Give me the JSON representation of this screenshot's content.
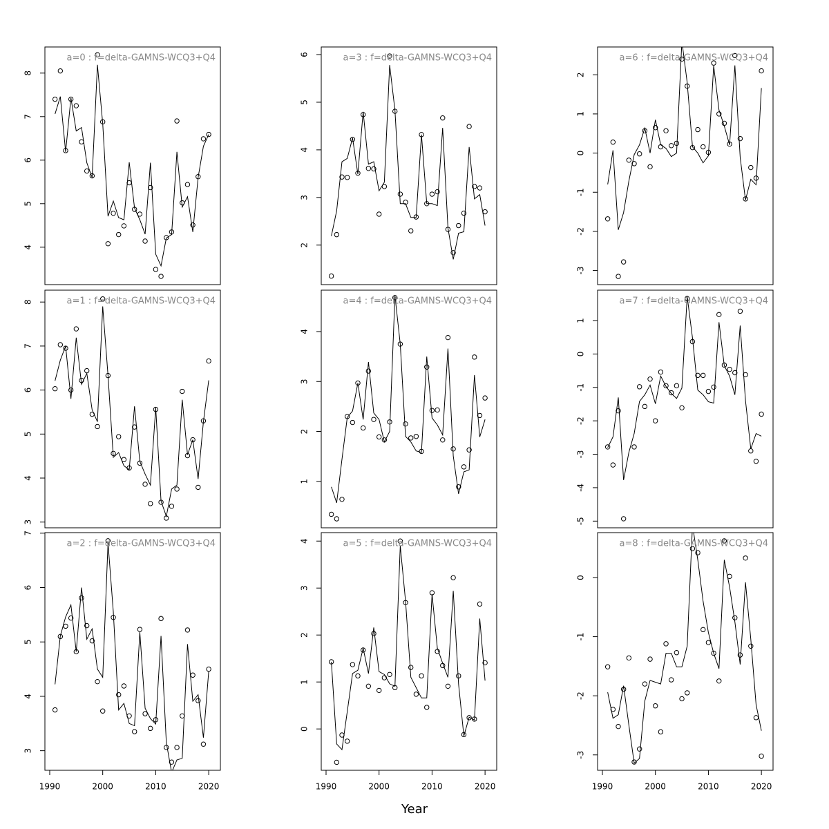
{
  "xlabel": "Year",
  "chart_data": [
    {
      "type": "line",
      "title": "a=0 : f=delta-GAMNS-WCQ3+Q4",
      "x": [
        1991,
        1992,
        1993,
        1994,
        1995,
        1996,
        1997,
        1998,
        1999,
        2000,
        2001,
        2002,
        2003,
        2004,
        2005,
        2006,
        2007,
        2008,
        2009,
        2010,
        2011,
        2012,
        2013,
        2014,
        2015,
        2016,
        2017,
        2018,
        2019,
        2020
      ],
      "xlim": [
        1989.09,
        2022.2
      ],
      "ylim": [
        3.14,
        8.6
      ],
      "yticks": [
        4,
        5,
        6,
        7,
        8
      ],
      "series": [
        {
          "style": "points",
          "color": "#000000",
          "values": [
            7.4,
            8.05,
            6.22,
            7.4,
            7.25,
            6.42,
            5.75,
            5.64,
            8.42,
            6.88,
            4.08,
            4.78,
            4.29,
            4.49,
            5.48,
            4.87,
            4.76,
            4.14,
            5.37,
            3.49,
            3.33,
            4.22,
            4.35,
            6.9,
            5.02,
            5.44,
            4.51,
            5.62,
            6.49,
            6.59
          ]
        },
        {
          "style": "line",
          "color": "#000000",
          "values": [
            7.06,
            7.46,
            6.19,
            7.43,
            6.67,
            6.75,
            5.94,
            5.6,
            8.19,
            6.84,
            4.71,
            5.06,
            4.68,
            4.63,
            5.95,
            4.9,
            4.63,
            4.3,
            5.94,
            3.84,
            3.57,
            4.21,
            4.29,
            6.19,
            4.92,
            5.16,
            4.35,
            5.6,
            6.32,
            6.59
          ]
        }
      ]
    },
    {
      "type": "line",
      "title": "a=1 : f=delta-GAMNS-WCQ3+Q4",
      "x": [
        1991,
        1992,
        1993,
        1994,
        1995,
        1996,
        1997,
        1998,
        1999,
        2000,
        2001,
        2002,
        2003,
        2004,
        2005,
        2006,
        2007,
        2008,
        2009,
        2010,
        2011,
        2012,
        2013,
        2014,
        2015,
        2016,
        2017,
        2018,
        2019,
        2020
      ],
      "xlim": [
        1989.09,
        2022.2
      ],
      "ylim": [
        2.87,
        8.27
      ],
      "yticks": [
        3,
        4,
        5,
        6,
        7,
        8
      ],
      "series": [
        {
          "style": "points",
          "color": "#000000",
          "values": [
            6.03,
            7.03,
            6.95,
            6.0,
            7.39,
            6.22,
            6.44,
            5.45,
            5.17,
            8.07,
            6.33,
            4.56,
            4.94,
            4.42,
            4.23,
            5.16,
            4.34,
            3.86,
            3.42,
            5.56,
            3.45,
            3.09,
            3.36,
            3.75,
            5.97,
            4.51,
            4.87,
            3.79,
            5.3,
            6.66
          ]
        },
        {
          "style": "line",
          "color": "#000000",
          "values": [
            6.21,
            6.68,
            7.0,
            5.8,
            7.19,
            6.13,
            6.38,
            5.55,
            5.28,
            7.9,
            6.33,
            4.47,
            4.58,
            4.28,
            4.19,
            5.63,
            4.38,
            4.09,
            3.84,
            5.6,
            3.48,
            3.13,
            3.75,
            3.84,
            5.78,
            4.53,
            4.87,
            3.98,
            5.28,
            6.22
          ]
        }
      ]
    },
    {
      "type": "line",
      "title": "a=2 : f=delta-GAMNS-WCQ3+Q4",
      "x": [
        1991,
        1992,
        1993,
        1994,
        1995,
        1996,
        1997,
        1998,
        1999,
        2000,
        2001,
        2002,
        2003,
        2004,
        2005,
        2006,
        2007,
        2008,
        2009,
        2010,
        2011,
        2012,
        2013,
        2014,
        2015,
        2016,
        2017,
        2018,
        2019,
        2020
      ],
      "xlim": [
        1989.09,
        2022.2
      ],
      "ylim": [
        2.64,
        7.01
      ],
      "yticks": [
        3,
        4,
        5,
        6,
        7
      ],
      "xticks": [
        1990,
        2000,
        2010,
        2020
      ],
      "series": [
        {
          "style": "points",
          "color": "#000000",
          "values": [
            3.75,
            5.1,
            5.29,
            5.44,
            4.82,
            5.81,
            5.3,
            5.02,
            4.27,
            3.73,
            6.86,
            5.45,
            4.03,
            4.19,
            3.64,
            3.35,
            5.23,
            3.68,
            3.41,
            3.57,
            5.43,
            3.06,
            2.79,
            3.06,
            3.64,
            5.22,
            4.39,
            3.92,
            3.12,
            4.5
          ]
        },
        {
          "style": "line",
          "color": "#000000",
          "values": [
            4.22,
            5.11,
            5.46,
            5.68,
            4.82,
            6.0,
            5.05,
            5.24,
            4.5,
            4.35,
            6.82,
            5.55,
            3.75,
            3.87,
            3.5,
            3.46,
            5.18,
            3.78,
            3.59,
            3.49,
            5.11,
            3.15,
            2.6,
            2.83,
            2.86,
            4.96,
            3.91,
            4.03,
            3.24,
            4.46
          ]
        }
      ]
    },
    {
      "type": "line",
      "title": "a=3 : f=delta-GAMNS-WCQ3+Q4",
      "x": [
        1991,
        1992,
        1993,
        1994,
        1995,
        1996,
        1997,
        1998,
        1999,
        2000,
        2001,
        2002,
        2003,
        2004,
        2005,
        2006,
        2007,
        2008,
        2009,
        2010,
        2011,
        2012,
        2013,
        2014,
        2015,
        2016,
        2017,
        2018,
        2019,
        2020
      ],
      "xlim": [
        1989.09,
        2022.2
      ],
      "ylim": [
        1.17,
        6.16
      ],
      "yticks": [
        2,
        3,
        4,
        5,
        6
      ],
      "series": [
        {
          "style": "points",
          "color": "#000000",
          "values": [
            1.35,
            2.22,
            3.43,
            3.42,
            4.22,
            3.51,
            4.74,
            3.61,
            3.6,
            2.65,
            3.23,
            5.97,
            4.81,
            3.07,
            2.9,
            2.3,
            2.59,
            4.32,
            2.87,
            3.07,
            3.12,
            4.67,
            2.33,
            1.84,
            2.41,
            2.67,
            4.49,
            3.23,
            3.2,
            2.7
          ]
        },
        {
          "style": "line",
          "color": "#000000",
          "values": [
            2.19,
            2.72,
            3.75,
            3.82,
            4.25,
            3.49,
            4.8,
            3.7,
            3.75,
            3.14,
            3.32,
            5.78,
            4.83,
            2.87,
            2.87,
            2.58,
            2.58,
            4.32,
            2.87,
            2.87,
            2.83,
            4.46,
            2.36,
            1.7,
            2.25,
            2.28,
            4.06,
            2.97,
            3.06,
            2.41
          ]
        }
      ]
    },
    {
      "type": "line",
      "title": "a=4 : f=delta-GAMNS-WCQ3+Q4",
      "x": [
        1991,
        1992,
        1993,
        1994,
        1995,
        1996,
        1997,
        1998,
        1999,
        2000,
        2001,
        2002,
        2003,
        2004,
        2005,
        2006,
        2007,
        2008,
        2009,
        2010,
        2011,
        2012,
        2013,
        2014,
        2015,
        2016,
        2017,
        2018,
        2019,
        2020
      ],
      "xlim": [
        1989.09,
        2022.2
      ],
      "ylim": [
        0.07,
        4.83
      ],
      "yticks": [
        1,
        2,
        3,
        4
      ],
      "series": [
        {
          "style": "points",
          "color": "#000000",
          "values": [
            0.34,
            0.25,
            0.64,
            2.3,
            2.18,
            2.97,
            2.07,
            3.21,
            2.24,
            1.89,
            1.83,
            2.19,
            4.68,
            3.75,
            2.15,
            1.87,
            1.9,
            1.6,
            3.29,
            2.42,
            2.43,
            1.83,
            3.88,
            1.65,
            0.89,
            1.29,
            1.63,
            3.49,
            2.32,
            2.67
          ]
        },
        {
          "style": "line",
          "color": "#000000",
          "values": [
            0.89,
            0.57,
            1.44,
            2.28,
            2.41,
            2.97,
            2.24,
            3.39,
            2.37,
            2.24,
            1.79,
            2.0,
            4.72,
            3.75,
            1.9,
            1.79,
            1.61,
            1.58,
            3.5,
            2.27,
            2.13,
            1.93,
            3.66,
            1.51,
            0.75,
            1.19,
            1.23,
            3.13,
            1.89,
            2.24
          ]
        }
      ]
    },
    {
      "type": "line",
      "title": "a=5 : f=delta-GAMNS-WCQ3+Q4",
      "x": [
        1991,
        1992,
        1993,
        1994,
        1995,
        1996,
        1997,
        1998,
        1999,
        2000,
        2001,
        2002,
        2003,
        2004,
        2005,
        2006,
        2007,
        2008,
        2009,
        2010,
        2011,
        2012,
        2013,
        2014,
        2015,
        2016,
        2017,
        2018,
        2019,
        2020
      ],
      "xlim": [
        1989.09,
        2022.2
      ],
      "ylim": [
        -0.88,
        4.18
      ],
      "yticks": [
        0,
        1,
        2,
        3,
        4
      ],
      "xticks": [
        1990,
        2000,
        2010,
        2020
      ],
      "series": [
        {
          "style": "points",
          "color": "#000000",
          "values": [
            1.43,
            -0.71,
            -0.13,
            -0.26,
            1.37,
            1.13,
            1.68,
            0.91,
            2.03,
            0.82,
            1.09,
            1.16,
            0.88,
            4.0,
            2.69,
            1.31,
            0.74,
            1.13,
            0.46,
            2.9,
            1.65,
            1.35,
            0.91,
            3.22,
            1.13,
            -0.12,
            0.24,
            0.21,
            2.66,
            1.41
          ]
        },
        {
          "style": "line",
          "color": "#000000",
          "values": [
            1.43,
            -0.32,
            -0.44,
            0.37,
            1.18,
            1.25,
            1.72,
            1.18,
            2.16,
            1.22,
            1.16,
            0.96,
            0.91,
            3.9,
            2.72,
            1.1,
            0.88,
            0.66,
            0.66,
            2.87,
            1.72,
            1.4,
            1.1,
            2.94,
            0.96,
            -0.15,
            0.25,
            0.19,
            2.35,
            1.03
          ]
        }
      ]
    },
    {
      "type": "line",
      "title": "a=6 : f=delta-GAMNS-WCQ3+Q4",
      "x": [
        1991,
        1992,
        1993,
        1994,
        1995,
        1996,
        1997,
        1998,
        1999,
        2000,
        2001,
        2002,
        2003,
        2004,
        2005,
        2006,
        2007,
        2008,
        2009,
        2010,
        2011,
        2012,
        2013,
        2014,
        2015,
        2016,
        2017,
        2018,
        2019,
        2020
      ],
      "xlim": [
        1989.09,
        2022.2
      ],
      "ylim": [
        -3.36,
        2.71
      ],
      "yticks": [
        -3,
        -2,
        -1,
        0,
        1,
        2
      ],
      "series": [
        {
          "style": "points",
          "color": "#000000",
          "values": [
            -1.68,
            0.28,
            -3.15,
            -2.78,
            -0.18,
            -0.27,
            -0.02,
            0.57,
            -0.35,
            0.65,
            0.16,
            0.57,
            0.19,
            0.25,
            2.4,
            1.71,
            0.14,
            0.6,
            0.16,
            0.02,
            2.3,
            1.0,
            0.76,
            0.23,
            2.49,
            0.37,
            -1.17,
            -0.37,
            -0.64,
            2.1
          ]
        },
        {
          "style": "line",
          "color": "#000000",
          "values": [
            -0.8,
            0.07,
            -1.96,
            -1.52,
            -0.71,
            -0.04,
            0.21,
            0.64,
            0,
            0.85,
            0.21,
            0.12,
            -0.09,
            0,
            2.86,
            1.8,
            0.16,
            0,
            -0.25,
            -0.07,
            2.23,
            1.1,
            0.69,
            0.21,
            2.24,
            -0.11,
            -1.2,
            -0.67,
            -0.81,
            1.66
          ]
        }
      ]
    },
    {
      "type": "line",
      "title": "a=7 : f=delta-GAMNS-WCQ3+Q4",
      "x": [
        1991,
        1992,
        1993,
        1994,
        1995,
        1996,
        1997,
        1998,
        1999,
        2000,
        2001,
        2002,
        2003,
        2004,
        2005,
        2006,
        2007,
        2008,
        2009,
        2010,
        2011,
        2012,
        2013,
        2014,
        2015,
        2016,
        2017,
        2018,
        2019,
        2020
      ],
      "xlim": [
        1989.09,
        2022.2
      ],
      "ylim": [
        -5.2,
        1.91
      ],
      "yticks": [
        -5,
        -4,
        -3,
        -2,
        -1,
        0,
        1
      ],
      "series": [
        {
          "style": "points",
          "color": "#000000",
          "values": [
            -2.78,
            -3.32,
            -1.7,
            -4.93,
            null,
            -2.78,
            -0.98,
            -1.57,
            -0.75,
            -2.0,
            -0.54,
            -0.95,
            -1.16,
            -0.95,
            -1.61,
            1.66,
            0.37,
            -0.64,
            -0.64,
            -1.12,
            -0.99,
            1.18,
            -0.33,
            -0.46,
            -0.56,
            1.28,
            -0.62,
            -2.9,
            -3.21,
            -1.8
          ]
        },
        {
          "style": "line",
          "color": "#000000",
          "values": [
            -2.8,
            -2.48,
            -1.3,
            -3.77,
            -2.94,
            -2.38,
            -1.42,
            -1.22,
            -0.93,
            -1.49,
            -0.66,
            -0.97,
            -1.18,
            -1.33,
            -1.02,
            1.72,
            0.48,
            -1.08,
            -1.22,
            -1.43,
            -1.47,
            0.95,
            -0.35,
            -0.66,
            -1.22,
            0.85,
            -1.39,
            -2.84,
            -2.38,
            -2.46
          ]
        }
      ]
    },
    {
      "type": "line",
      "title": "a=8 : f=delta-GAMNS-WCQ3+Q4",
      "x": [
        1991,
        1992,
        1993,
        1994,
        1995,
        1996,
        1997,
        1998,
        1999,
        2000,
        2001,
        2002,
        2003,
        2004,
        2005,
        2006,
        2007,
        2008,
        2009,
        2010,
        2011,
        2012,
        2013,
        2014,
        2015,
        2016,
        2017,
        2018,
        2019,
        2020
      ],
      "xlim": [
        1989.09,
        2022.2
      ],
      "ylim": [
        -3.26,
        0.76
      ],
      "yticks": [
        -3,
        -2,
        -1,
        0
      ],
      "xticks": [
        1990,
        2000,
        2010,
        2020
      ],
      "series": [
        {
          "style": "points",
          "color": "#000000",
          "values": [
            -1.51,
            -2.23,
            -2.52,
            -1.89,
            -1.36,
            -3.12,
            -2.9,
            -1.8,
            -1.38,
            -2.17,
            -2.61,
            -1.12,
            -1.73,
            -1.27,
            -2.05,
            -1.95,
            0.49,
            0.42,
            -0.88,
            -1.1,
            -1.28,
            -1.75,
            0.62,
            0.02,
            -0.68,
            -1.31,
            0.33,
            -1.16,
            -2.37,
            -3.02
          ]
        },
        {
          "style": "line",
          "color": "#000000",
          "values": [
            -1.94,
            -2.38,
            -2.32,
            -1.83,
            -2.5,
            -3.14,
            -3.06,
            -2.09,
            -1.74,
            -1.77,
            -1.8,
            -1.28,
            -1.28,
            -1.51,
            -1.51,
            -1.16,
            0.89,
            0.3,
            -0.4,
            -0.93,
            -1.28,
            -1.54,
            0.3,
            -0.16,
            -0.75,
            -1.47,
            -0.08,
            -1.04,
            -2.15,
            -2.59
          ]
        }
      ]
    }
  ]
}
